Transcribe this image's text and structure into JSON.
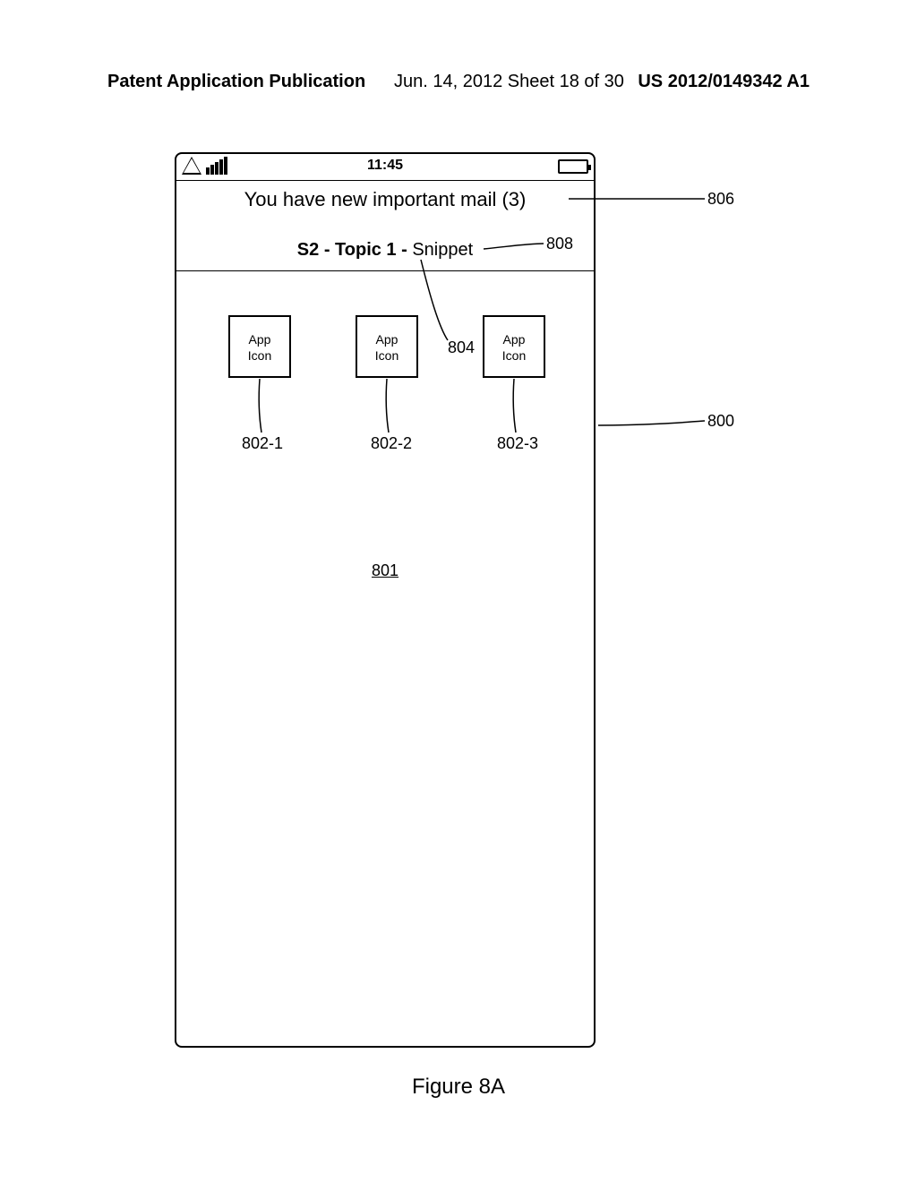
{
  "header": {
    "left": "Patent Application Publication",
    "center": "Jun. 14, 2012  Sheet 18 of 30",
    "right": "US 2012/0149342 A1"
  },
  "phone": {
    "status": {
      "time": "11:45"
    },
    "notification": {
      "line1": "You have new important mail (3)",
      "line2_bold": "S2 - Topic 1 - ",
      "line2_rest": "Snippet"
    },
    "icons": {
      "label": "App\nIcon"
    },
    "ref_801": "801"
  },
  "callouts": {
    "c806": "806",
    "c808": "808",
    "c804": "804",
    "c800": "800",
    "c8021": "802-1",
    "c8022": "802-2",
    "c8023": "802-3"
  },
  "figure_caption": "Figure 8A"
}
